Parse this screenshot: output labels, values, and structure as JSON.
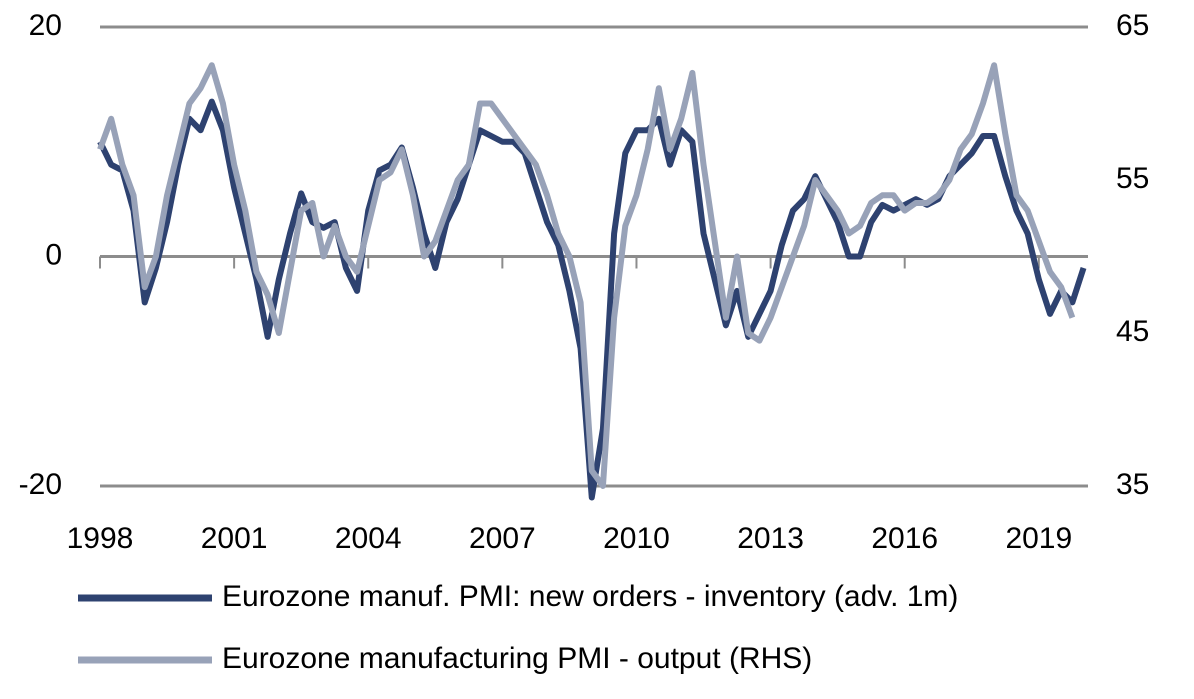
{
  "chart_data": {
    "type": "line",
    "x": [
      1998,
      1998.25,
      1998.5,
      1998.75,
      1999,
      1999.25,
      1999.5,
      1999.75,
      2000,
      2000.25,
      2000.5,
      2000.75,
      2001,
      2001.25,
      2001.5,
      2001.75,
      2002,
      2002.25,
      2002.5,
      2002.75,
      2003,
      2003.25,
      2003.5,
      2003.75,
      2004,
      2004.25,
      2004.5,
      2004.75,
      2005,
      2005.25,
      2005.5,
      2005.75,
      2006,
      2006.25,
      2006.5,
      2006.75,
      2007,
      2007.25,
      2007.5,
      2007.75,
      2008,
      2008.25,
      2008.5,
      2008.75,
      2009,
      2009.25,
      2009.5,
      2009.75,
      2010,
      2010.25,
      2010.5,
      2010.75,
      2011,
      2011.25,
      2011.5,
      2011.75,
      2012,
      2012.25,
      2012.5,
      2012.75,
      2013,
      2013.25,
      2013.5,
      2013.75,
      2014,
      2014.25,
      2014.5,
      2014.75,
      2015,
      2015.25,
      2015.5,
      2015.75,
      2016,
      2016.25,
      2016.5,
      2016.75,
      2017,
      2017.25,
      2017.5,
      2017.75,
      2018,
      2018.25,
      2018.5,
      2018.75,
      2019,
      2019.25,
      2019.5,
      2019.75,
      2020
    ],
    "series": [
      {
        "name": "Eurozone manuf. PMI: new orders - inventory (adv. 1m)",
        "color": "#2e4270",
        "values": [
          10,
          8,
          7.5,
          4,
          -4,
          -1,
          3,
          8,
          12,
          11,
          13.5,
          11,
          6,
          2,
          -2,
          -7,
          -2,
          2,
          5.5,
          3,
          2.5,
          3,
          -1,
          -3,
          4,
          7.5,
          8,
          9.5,
          6,
          2,
          -1,
          3,
          5,
          8,
          11,
          10.5,
          10,
          10,
          9,
          6,
          3,
          1,
          -3,
          -8,
          -21,
          -15,
          2,
          9,
          11,
          11,
          12,
          8,
          11,
          10,
          2,
          -2,
          -6,
          -3,
          -7,
          -5,
          -3,
          1,
          4,
          5,
          7,
          5,
          3,
          0,
          0,
          3,
          4.5,
          4,
          4.5,
          5,
          4.5,
          5,
          7,
          8,
          9,
          10.5,
          10.5,
          7,
          4,
          2,
          -2,
          -5,
          -3,
          -4,
          -1
        ]
      },
      {
        "name": "Eurozone manufacturing PMI  - output (RHS)",
        "color": "#98a2b8",
        "axis": "y2",
        "values": [
          57,
          59,
          56,
          54,
          48,
          50,
          54,
          57,
          60,
          61,
          62.5,
          60,
          56,
          53,
          49,
          47.5,
          45,
          49,
          53,
          53.5,
          50,
          52,
          50,
          49,
          52,
          55,
          55.5,
          57,
          54,
          50,
          51,
          53,
          55,
          56,
          60,
          60,
          59,
          58,
          57,
          56,
          54,
          51.5,
          50,
          47,
          36,
          35,
          46,
          52,
          54,
          57,
          61,
          57,
          59,
          62,
          56,
          51,
          46,
          50,
          45,
          44.5,
          46,
          48,
          50,
          52,
          55,
          54,
          53,
          51.5,
          52,
          53.5,
          54,
          54,
          53,
          53.5,
          53.5,
          54,
          55,
          57,
          58,
          60,
          62.5,
          58,
          54,
          53,
          51,
          49,
          48,
          46,
          null
        ]
      }
    ],
    "xlim": [
      1998,
      2020.1
    ],
    "xticks": [
      1998,
      2001,
      2004,
      2007,
      2010,
      2013,
      2016,
      2019
    ],
    "ylim": [
      -20,
      20
    ],
    "yticks": [
      -20,
      0,
      20
    ],
    "y2lim": [
      35,
      65
    ],
    "y2ticks": [
      35,
      45,
      55,
      65
    ],
    "grid": true,
    "legend": "bottom"
  }
}
